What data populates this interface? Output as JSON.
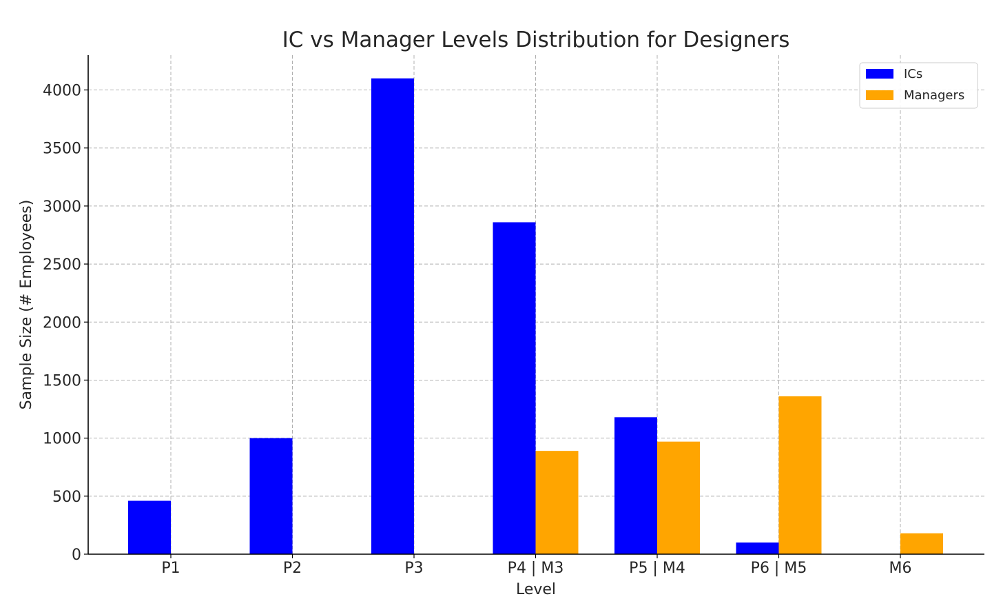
{
  "chart_data": {
    "type": "bar",
    "title": "IC vs Manager Levels Distribution for Designers",
    "xlabel": "Level",
    "ylabel": "Sample Size (# Employees)",
    "categories": [
      "P1",
      "P2",
      "P3",
      "P4 | M3",
      "P5 | M4",
      "P6 | M5",
      "M6"
    ],
    "series": [
      {
        "name": "ICs",
        "color": "#0000ff",
        "values": [
          460,
          1000,
          4100,
          2860,
          1180,
          100,
          0
        ]
      },
      {
        "name": "Managers",
        "color": "#ffa500",
        "values": [
          0,
          0,
          0,
          890,
          970,
          1360,
          180
        ]
      }
    ],
    "ylim": [
      0,
      4300
    ],
    "yticks": [
      0,
      500,
      1000,
      1500,
      2000,
      2500,
      3000,
      3500,
      4000
    ],
    "grid": true,
    "legend_position": "top-right"
  }
}
